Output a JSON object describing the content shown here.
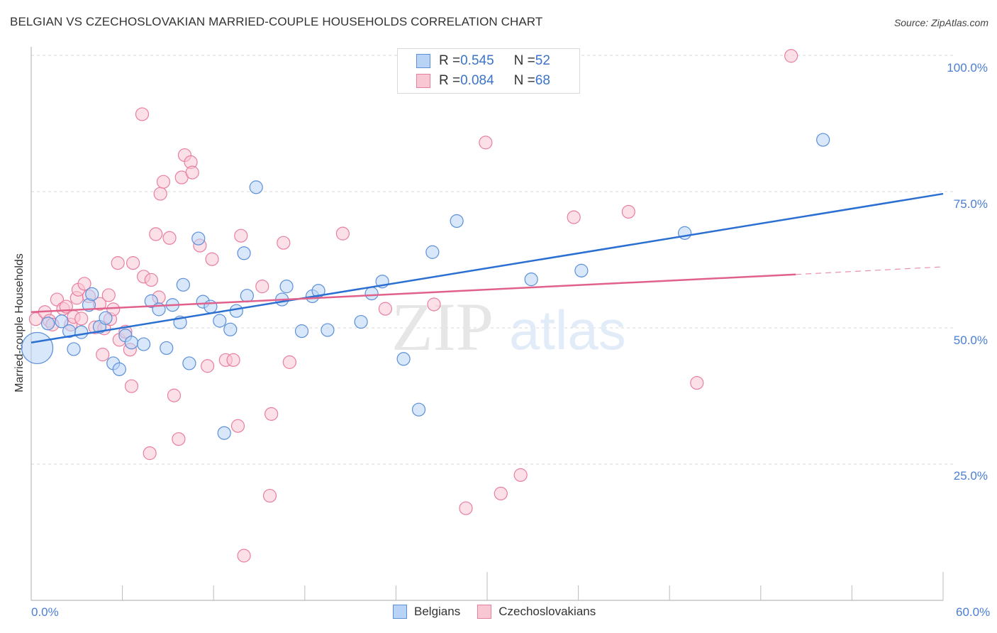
{
  "header": {
    "title": "BELGIAN VS CZECHOSLOVAKIAN MARRIED-COUPLE HOUSEHOLDS CORRELATION CHART",
    "source": "Source: ZipAtlas.com"
  },
  "watermark": {
    "zip": "ZIP",
    "atlas": "atlas"
  },
  "axes": {
    "y_label": "Married-couple Households",
    "y_ticks": [
      "100.0%",
      "75.0%",
      "50.0%",
      "25.0%"
    ],
    "x_min_label": "0.0%",
    "x_max_label": "60.0%"
  },
  "legend": {
    "rows": [
      {
        "r_label": "R = ",
        "r_value": "0.545",
        "n_label": "N = ",
        "n_value": "52"
      },
      {
        "r_label": "R = ",
        "r_value": "0.084",
        "n_label": "N = ",
        "n_value": "68"
      }
    ],
    "bottom": [
      {
        "label": "Belgians"
      },
      {
        "label": "Czechoslovakians"
      }
    ]
  },
  "colors": {
    "belgian_fill": "#b8d3f5",
    "belgian_stroke": "#5b8fd9",
    "belgian_line": "#2a6fd1",
    "czech_fill": "#f9c6d4",
    "czech_stroke": "#e87ea0",
    "czech_line": "#e0628c",
    "tick_label": "#4a7fd4",
    "grid": "#d8d8d8"
  },
  "chart_data": {
    "type": "scatter",
    "title": "BELGIAN VS CZECHOSLOVAKIAN MARRIED-COUPLE HOUSEHOLDS CORRELATION CHART",
    "xlabel": "",
    "ylabel": "Married-couple Households",
    "xlim": [
      0,
      60
    ],
    "ylim": [
      0,
      100
    ],
    "x_ticks": [
      "0.0%",
      "60.0%"
    ],
    "y_ticks": [
      "25.0%",
      "50.0%",
      "75.0%",
      "100.0%"
    ],
    "grid": true,
    "legend_position": "top-center",
    "series": [
      {
        "name": "Belgians",
        "R": 0.545,
        "N": 52,
        "trend": {
          "x": [
            0,
            60
          ],
          "y": [
            47.3,
            74.6
          ]
        },
        "points": [
          [
            0.4,
            46.3,
            22
          ],
          [
            1.1,
            50.8
          ],
          [
            2.0,
            51.2
          ],
          [
            2.5,
            49.4
          ],
          [
            2.8,
            46.1
          ],
          [
            3.3,
            49.2
          ],
          [
            3.8,
            54.2
          ],
          [
            4.0,
            56.2
          ],
          [
            4.5,
            50.2
          ],
          [
            4.9,
            51.8
          ],
          [
            5.4,
            43.5
          ],
          [
            5.8,
            42.4
          ],
          [
            6.2,
            48.6
          ],
          [
            6.6,
            47.3
          ],
          [
            7.4,
            47.0
          ],
          [
            7.9,
            54.9
          ],
          [
            8.4,
            53.4
          ],
          [
            8.9,
            46.3
          ],
          [
            9.3,
            54.2
          ],
          [
            9.8,
            51.0
          ],
          [
            10.0,
            57.9
          ],
          [
            10.4,
            43.5
          ],
          [
            11.0,
            66.4
          ],
          [
            11.3,
            54.8
          ],
          [
            11.8,
            53.9
          ],
          [
            12.4,
            51.3
          ],
          [
            12.7,
            30.7
          ],
          [
            13.1,
            49.7
          ],
          [
            13.5,
            53.1
          ],
          [
            14.0,
            63.7
          ],
          [
            14.2,
            55.9
          ],
          [
            14.8,
            75.8
          ],
          [
            16.5,
            55.2
          ],
          [
            16.8,
            57.6
          ],
          [
            17.8,
            49.4
          ],
          [
            18.5,
            55.8
          ],
          [
            18.9,
            56.8
          ],
          [
            19.5,
            49.6
          ],
          [
            21.7,
            51.1
          ],
          [
            22.4,
            56.3
          ],
          [
            23.1,
            58.5
          ],
          [
            24.5,
            44.3
          ],
          [
            25.5,
            35.0
          ],
          [
            26.4,
            63.9
          ],
          [
            28.0,
            69.6
          ],
          [
            32.9,
            58.9
          ],
          [
            36.2,
            60.5
          ],
          [
            43.0,
            67.4
          ],
          [
            52.1,
            84.5
          ]
        ]
      },
      {
        "name": "Czechoslovakians",
        "R": 0.084,
        "N": 68,
        "trend": {
          "x": [
            0,
            50.3
          ],
          "y": [
            52.9,
            59.8
          ],
          "dashed_extension": {
            "x": [
              50.3,
              60
            ],
            "y": [
              59.8,
              61.2
            ]
          }
        },
        "points": [
          [
            0.3,
            51.6
          ],
          [
            0.9,
            52.9
          ],
          [
            1.2,
            51.3
          ],
          [
            1.4,
            50.6
          ],
          [
            1.7,
            55.2
          ],
          [
            2.1,
            53.5
          ],
          [
            2.3,
            53.9
          ],
          [
            2.6,
            50.6
          ],
          [
            2.8,
            52.0
          ],
          [
            3.0,
            55.5
          ],
          [
            3.3,
            51.7
          ],
          [
            3.1,
            57.0
          ],
          [
            3.5,
            58.1
          ],
          [
            3.8,
            55.8
          ],
          [
            4.2,
            50.1
          ],
          [
            4.5,
            54.4
          ],
          [
            4.8,
            49.9
          ],
          [
            4.7,
            45.1
          ],
          [
            5.2,
            51.6
          ],
          [
            5.1,
            56.0
          ],
          [
            5.4,
            53.4
          ],
          [
            5.7,
            61.9
          ],
          [
            5.8,
            47.8
          ],
          [
            6.2,
            49.3
          ],
          [
            6.5,
            46.0
          ],
          [
            6.6,
            39.3
          ],
          [
            6.7,
            61.9
          ],
          [
            7.3,
            89.2
          ],
          [
            7.4,
            59.4
          ],
          [
            7.8,
            27.0
          ],
          [
            7.9,
            58.8
          ],
          [
            8.2,
            67.2
          ],
          [
            8.4,
            55.6
          ],
          [
            8.5,
            74.6
          ],
          [
            8.7,
            76.8
          ],
          [
            9.1,
            66.5
          ],
          [
            9.4,
            37.6
          ],
          [
            9.7,
            29.6
          ],
          [
            9.9,
            77.6
          ],
          [
            10.1,
            81.7
          ],
          [
            10.5,
            80.4
          ],
          [
            10.6,
            78.5
          ],
          [
            11.1,
            65.1
          ],
          [
            11.6,
            43.0
          ],
          [
            11.9,
            62.6
          ],
          [
            12.8,
            44.1
          ],
          [
            13.3,
            44.1
          ],
          [
            13.6,
            32.0
          ],
          [
            13.8,
            66.9
          ],
          [
            14.0,
            8.2
          ],
          [
            15.2,
            57.6
          ],
          [
            15.7,
            19.2
          ],
          [
            15.8,
            34.2
          ],
          [
            16.6,
            65.6
          ],
          [
            17.0,
            43.7
          ],
          [
            20.5,
            67.3
          ],
          [
            23.3,
            53.5
          ],
          [
            26.5,
            54.3
          ],
          [
            28.6,
            16.9
          ],
          [
            29.9,
            84.0
          ],
          [
            30.9,
            19.6
          ],
          [
            32.2,
            23.0
          ],
          [
            35.7,
            70.3
          ],
          [
            39.3,
            71.3
          ],
          [
            43.8,
            39.9
          ],
          [
            50.0,
            99.9
          ],
          [
            24.7,
            99.9
          ]
        ]
      }
    ]
  }
}
